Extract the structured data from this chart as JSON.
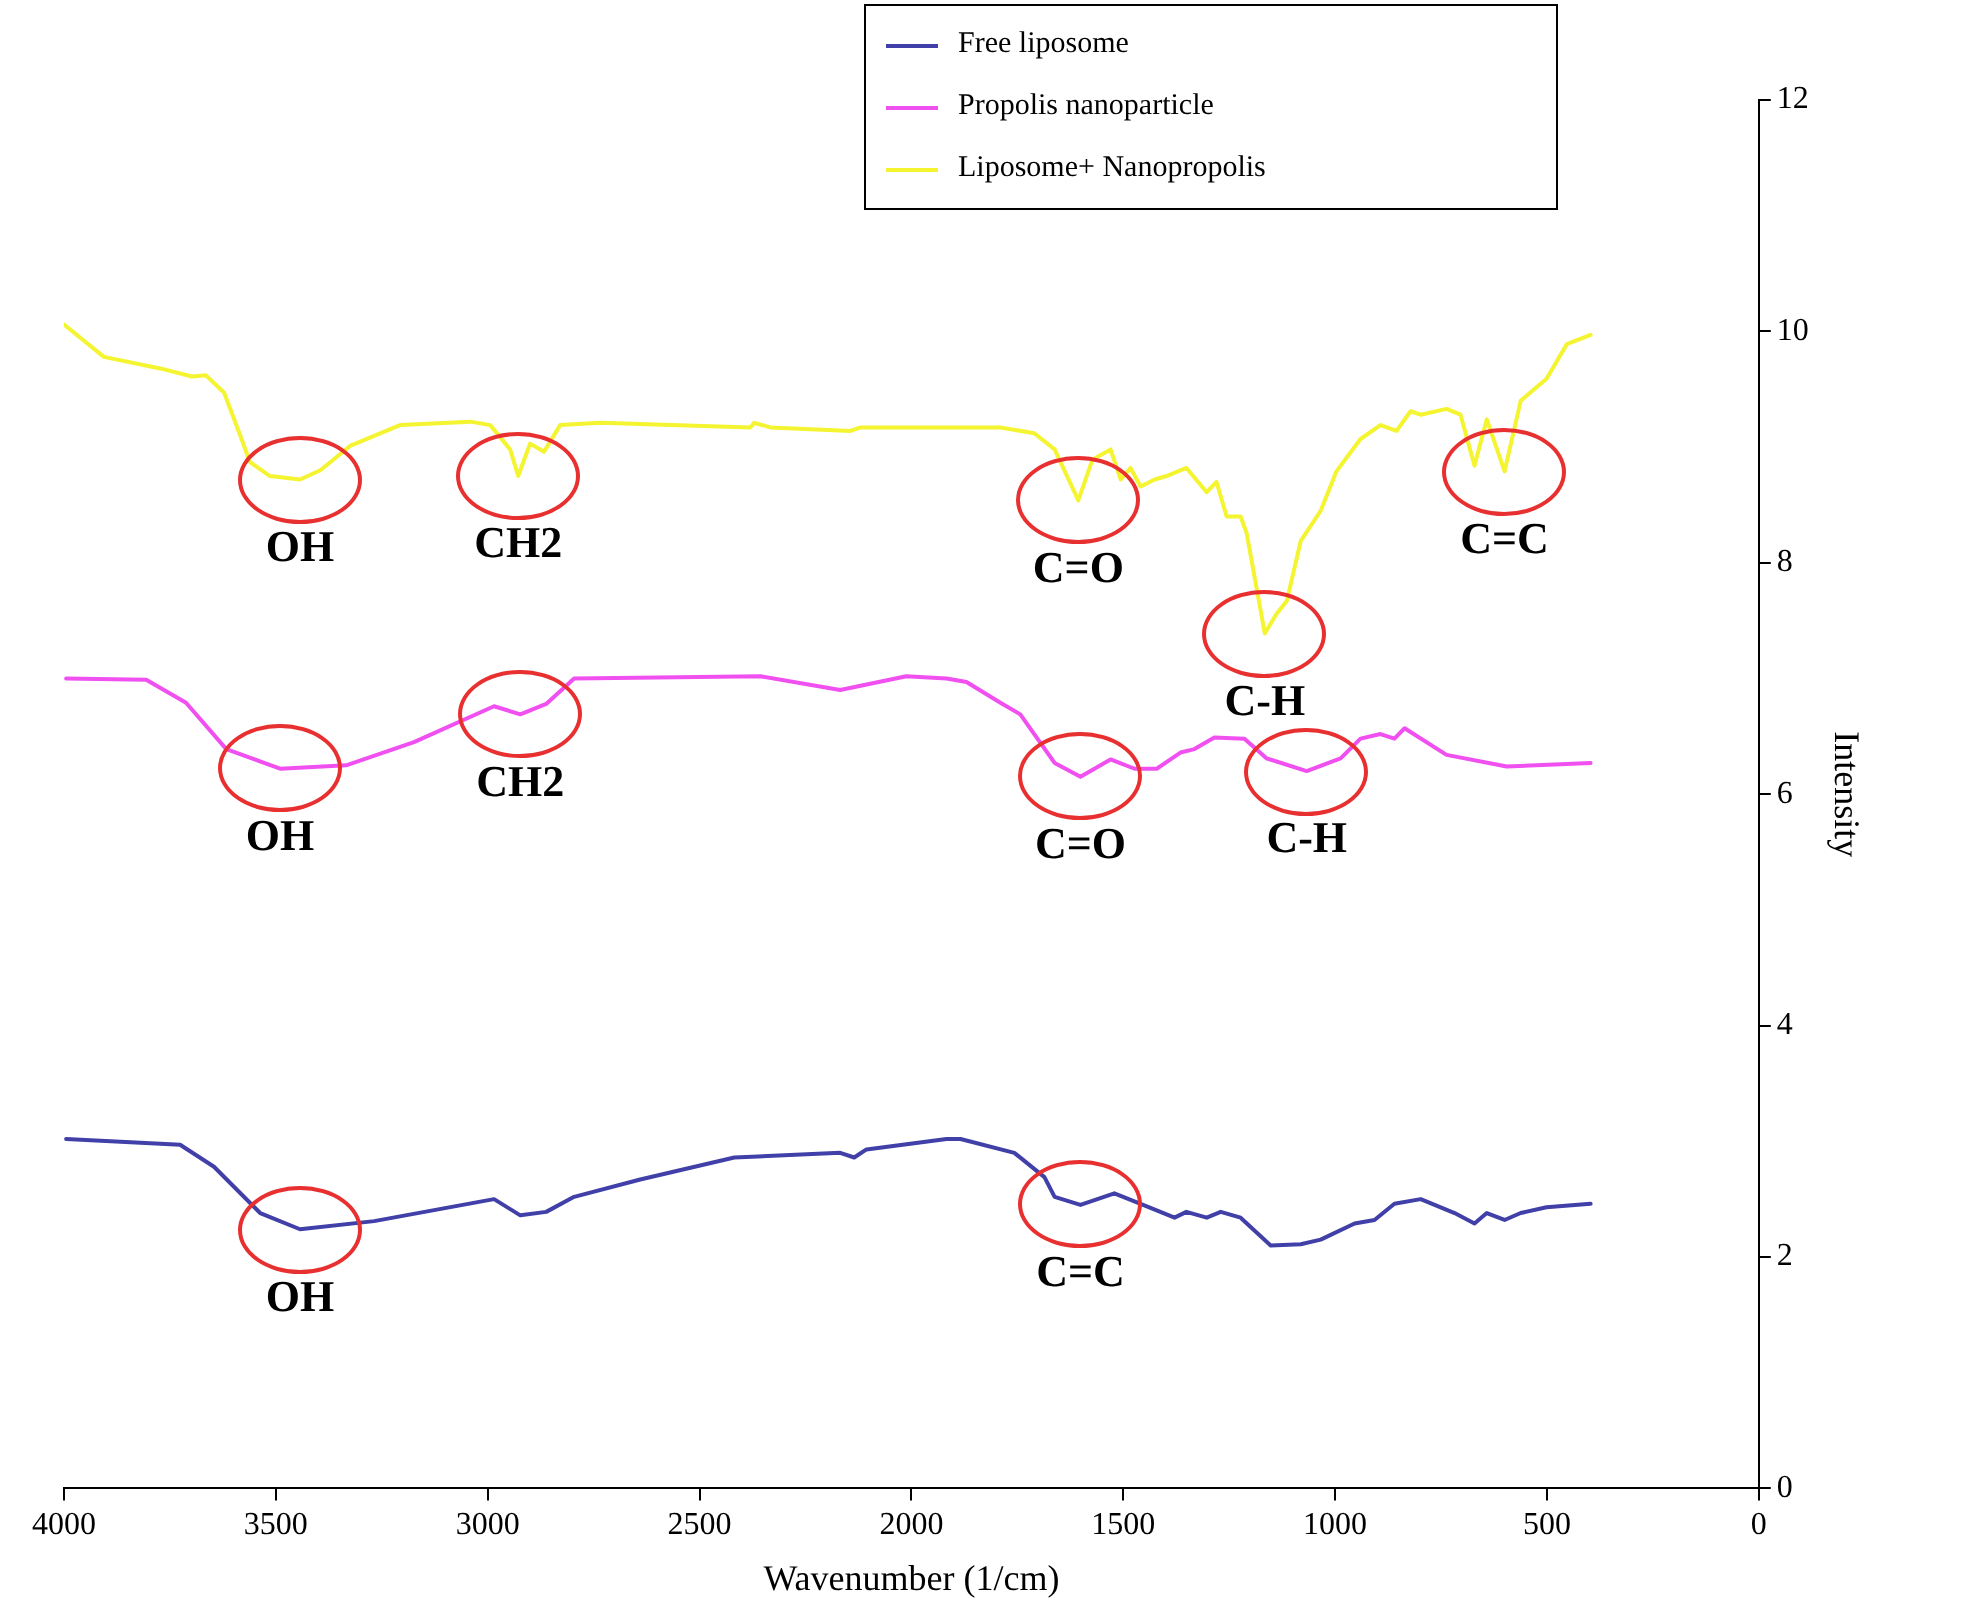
{
  "chart_data": {
    "type": "line",
    "xlabel": "Wavenumber (1/cm)",
    "ylabel": "Intensity",
    "xlim": [
      4000,
      0
    ],
    "xticks": [
      4000,
      3500,
      3000,
      2500,
      2000,
      1500,
      1000,
      500,
      0
    ],
    "ylim": [
      0,
      12
    ],
    "yticks": [
      0,
      2,
      4,
      6,
      8,
      10,
      12
    ],
    "grid": false,
    "legend": "top",
    "marker": "none",
    "line_style": "solid",
    "series": [
      {
        "name": "Free liposome",
        "color": "#4040a8",
        "x": [
          3995,
          3726,
          3646,
          3537,
          3443,
          3268,
          2985,
          2923,
          2862,
          2796,
          2640,
          2418,
          2168,
          2135,
          2106,
          1917,
          1884,
          1757,
          1686,
          1662,
          1601,
          1521,
          1459,
          1379,
          1351,
          1303,
          1270,
          1223,
          1152,
          1081,
          1034,
          954,
          907,
          860,
          798,
          718,
          671,
          642,
          600,
          562,
          501,
          397
        ],
        "values": [
          3.02,
          2.97,
          2.78,
          2.38,
          2.24,
          2.31,
          2.5,
          2.36,
          2.39,
          2.52,
          2.67,
          2.86,
          2.9,
          2.86,
          2.93,
          3.02,
          3.02,
          2.9,
          2.69,
          2.52,
          2.45,
          2.55,
          2.46,
          2.34,
          2.39,
          2.34,
          2.39,
          2.34,
          2.1,
          2.11,
          2.15,
          2.29,
          2.32,
          2.46,
          2.5,
          2.38,
          2.29,
          2.38,
          2.32,
          2.38,
          2.43,
          2.46
        ]
      },
      {
        "name": "Propolis nanoparticle",
        "color": "#f050f0",
        "x": [
          3995,
          3806,
          3712,
          3617,
          3490,
          3334,
          3174,
          2985,
          2923,
          2862,
          2796,
          2357,
          2168,
          2012,
          1917,
          1870,
          1790,
          1743,
          1662,
          1601,
          1530,
          1473,
          1421,
          1365,
          1332,
          1285,
          1214,
          1162,
          1067,
          987,
          940,
          893,
          860,
          836,
          737,
          595,
          397
        ],
        "values": [
          7.0,
          6.99,
          6.79,
          6.39,
          6.22,
          6.25,
          6.45,
          6.76,
          6.69,
          6.78,
          7.0,
          7.02,
          6.9,
          7.02,
          7.0,
          6.97,
          6.79,
          6.69,
          6.27,
          6.15,
          6.3,
          6.22,
          6.22,
          6.36,
          6.39,
          6.49,
          6.48,
          6.31,
          6.2,
          6.31,
          6.48,
          6.52,
          6.48,
          6.57,
          6.34,
          6.24,
          6.27
        ]
      },
      {
        "name": "Liposome+ Nanopropolis",
        "color": "#f4f430",
        "x": [
          4000,
          3906,
          3773,
          3698,
          3665,
          3622,
          3584,
          3561,
          3514,
          3443,
          3395,
          3325,
          3207,
          3041,
          2994,
          2947,
          2928,
          2900,
          2867,
          2829,
          2734,
          2380,
          2371,
          2333,
          2144,
          2120,
          1790,
          1710,
          1662,
          1606,
          1573,
          1530,
          1506,
          1483,
          1459,
          1426,
          1398,
          1351,
          1303,
          1280,
          1256,
          1223,
          1209,
          1166,
          1138,
          1114,
          1081,
          1034,
          997,
          940,
          893,
          855,
          822,
          798,
          737,
          704,
          671,
          642,
          600,
          562,
          501,
          453,
          397
        ],
        "values": [
          10.06,
          9.78,
          9.68,
          9.61,
          9.62,
          9.47,
          9.1,
          8.87,
          8.75,
          8.72,
          8.8,
          9.01,
          9.19,
          9.22,
          9.19,
          8.98,
          8.75,
          9.03,
          8.96,
          9.19,
          9.21,
          9.17,
          9.21,
          9.17,
          9.14,
          9.17,
          9.17,
          9.12,
          8.98,
          8.54,
          8.89,
          8.98,
          8.72,
          8.82,
          8.66,
          8.72,
          8.75,
          8.82,
          8.61,
          8.7,
          8.4,
          8.4,
          8.26,
          7.39,
          7.56,
          7.67,
          8.19,
          8.45,
          8.79,
          9.07,
          9.19,
          9.14,
          9.31,
          9.28,
          9.33,
          9.28,
          8.84,
          9.24,
          8.79,
          9.4,
          9.59,
          9.89,
          9.97
        ]
      }
    ],
    "annotations": [
      {
        "text": "OH",
        "x": 3443,
        "y": 8.72
      },
      {
        "text": "CH2",
        "x": 2928,
        "y": 8.75
      },
      {
        "text": "C=O",
        "x": 1606,
        "y": 8.54
      },
      {
        "text": "C-H",
        "x": 1166,
        "y": 7.39
      },
      {
        "text": "C=C",
        "x": 600,
        "y": 8.79
      },
      {
        "text": "OH",
        "x": 3490,
        "y": 6.22
      },
      {
        "text": "CH2",
        "x": 2923,
        "y": 6.69
      },
      {
        "text": "C=O",
        "x": 1601,
        "y": 6.15
      },
      {
        "text": "C-H",
        "x": 1067,
        "y": 6.2
      },
      {
        "text": "OH",
        "x": 3443,
        "y": 2.24
      },
      {
        "text": "C=C",
        "x": 1601,
        "y": 2.45
      }
    ]
  }
}
